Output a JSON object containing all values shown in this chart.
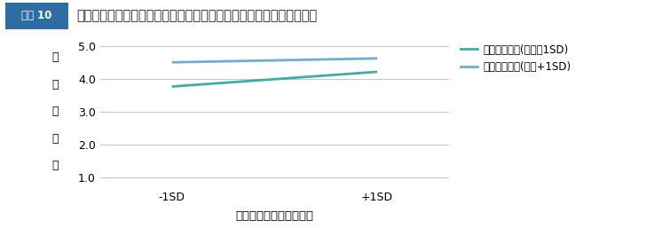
{
  "title": "仮説思考の水準別の、自律的協働への自律支援型マネジメントの効果",
  "figure_label": "図表 10",
  "xlabel": "自律支援型マネジメント",
  "ylabel_chars": [
    "自",
    "律",
    "的",
    "協",
    "働"
  ],
  "xtick_labels": [
    "-1SD",
    "+1SD"
  ],
  "ytick_vals": [
    1.0,
    2.0,
    3.0,
    4.0,
    5.0
  ],
  "ylim": [
    0.7,
    5.3
  ],
  "xlim": [
    -0.35,
    1.35
  ],
  "line_low": {
    "x": [
      0,
      1
    ],
    "y": [
      3.77,
      4.22
    ],
    "color": "#3aafa9",
    "label": "仮説思考低群(平均－1SD)"
  },
  "line_high": {
    "x": [
      0,
      1
    ],
    "y": [
      4.51,
      4.63
    ],
    "color": "#6baed6",
    "label": "仮説思考高群(平均+1SD)"
  },
  "grid_color": "#c8c8c8",
  "background_color": "#ffffff",
  "header_bg": "#2e6da4",
  "header_text_color": "#ffffff",
  "title_fontsize": 10.5,
  "axis_fontsize": 9,
  "legend_fontsize": 8.5,
  "ylabel_fontsize": 9,
  "xlabel_fontsize": 9.5,
  "header_label_fontsize": 8.5,
  "header_label": "図表 10"
}
